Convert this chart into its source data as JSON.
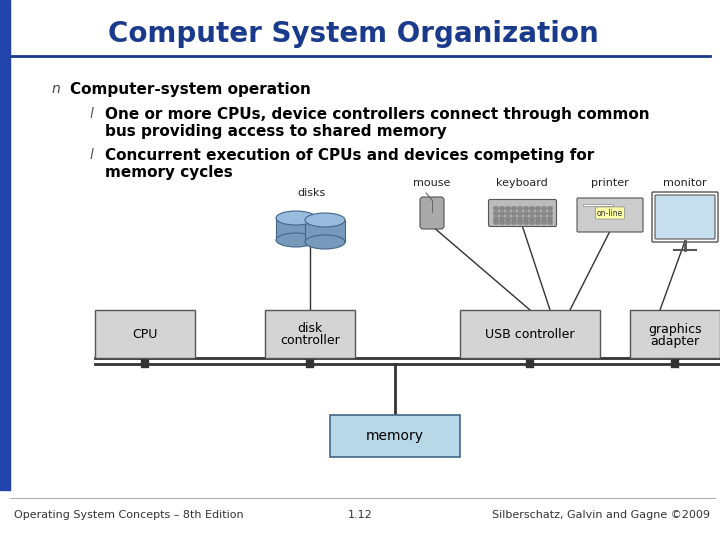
{
  "title": "Computer System Organization",
  "title_color": "#1a3a8c",
  "title_fontsize": 20,
  "header_line_color": "#1a3a8c",
  "left_bar_color": "#2244aa",
  "background_color": "#ffffff",
  "bullet1": "Computer-system operation",
  "bullet2_line1": "One or more CPUs, device controllers connect through common",
  "bullet2_line2": "bus providing access to shared memory",
  "bullet3_line1": "Concurrent execution of CPUs and devices competing for",
  "bullet3_line2": "memory cycles",
  "text_fontsize": 11,
  "footer_left": "Operating System Concepts – 8th Edition",
  "footer_center": "1.12",
  "footer_right": "Silberschatz, Galvin and Gagne ©2009",
  "footer_fontsize": 8,
  "box_fill": "#d4d4d4",
  "box_edge": "#555555",
  "memory_fill": "#b8d8e8",
  "memory_edge": "#446688",
  "bus_color": "#333333",
  "label_fontsize": 8,
  "device_color": "#888888",
  "disk_color1": "#7799bb",
  "disk_color2": "#99bbdd",
  "monitor_fill": "#c8dff0"
}
